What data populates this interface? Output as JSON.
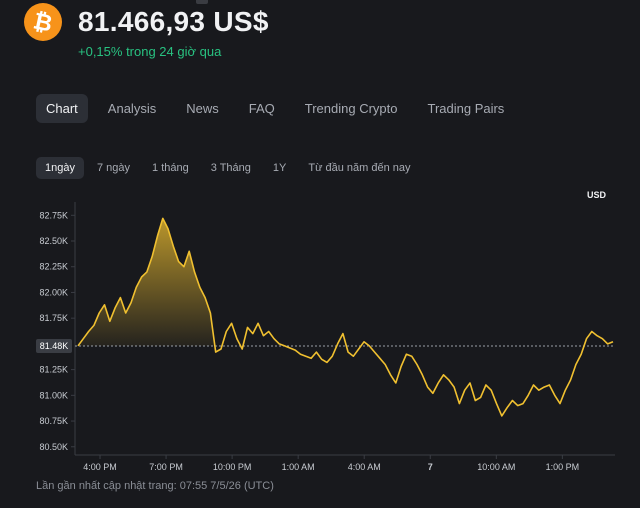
{
  "header": {
    "price": "81.466,93 US$",
    "change": "+0,15% trong 24 giờ qua"
  },
  "tabs": [
    "Chart",
    "Analysis",
    "News",
    "FAQ",
    "Trending Crypto",
    "Trading Pairs"
  ],
  "active_tab": "Chart",
  "ranges": [
    "1ngày",
    "7 ngày",
    "1 tháng",
    "3 Tháng",
    "1Y",
    "Từ đầu năm đến nay"
  ],
  "active_range": "1ngày",
  "currency": "USD",
  "footer": "Lần gần nhất cập nhật trang: 07:55 7/5/26 (UTC)",
  "colors": {
    "line": "#f0c030",
    "positive": "#28c281",
    "coin": "#f7931a"
  },
  "chart_data": {
    "type": "line",
    "series_unit": "USD",
    "y_ticks": [
      "82.75K",
      "82.50K",
      "82.25K",
      "82.00K",
      "81.75K",
      "81.48K",
      "81.25K",
      "81.00K",
      "80.75K",
      "80.50K"
    ],
    "x_ticks": [
      "4:00 PM",
      "7:00 PM",
      "10:00 PM",
      "1:00 AM",
      "4:00 AM",
      "7",
      "10:00 AM",
      "1:00 PM"
    ],
    "ylim": [
      80.42,
      82.85
    ],
    "reference_value": 81.48,
    "reference_label": "81.48K",
    "x_hours": [
      0,
      0.3,
      0.6,
      0.9,
      1.2,
      1.5,
      1.8,
      2.1,
      2.4,
      2.7,
      3.0,
      3.3,
      3.6,
      3.9,
      4.2,
      4.5,
      4.8,
      5.1,
      5.4,
      5.7,
      6.0,
      6.3,
      6.6,
      6.9,
      7.2,
      7.5,
      7.8,
      8.1,
      8.4,
      8.7,
      9.0,
      9.3,
      9.6,
      9.9,
      10.2,
      10.5,
      10.8,
      11.1,
      11.4,
      11.7,
      12.0,
      12.3,
      12.6,
      12.9,
      13.2,
      13.5,
      13.8,
      14.1,
      14.4,
      14.7,
      15.0,
      15.3,
      15.6,
      15.9,
      16.2,
      16.5,
      16.8,
      17.1,
      17.4,
      17.7,
      18.0,
      18.3,
      18.6,
      18.9,
      19.2,
      19.5,
      19.8,
      20.1,
      20.4,
      20.7,
      21.0,
      21.3,
      21.6,
      21.9,
      22.2,
      22.5,
      22.8,
      23.1,
      23.4,
      23.7,
      24.0,
      24.3,
      24.6,
      24.9,
      25.2,
      25.5,
      25.8,
      26.1,
      26.4,
      26.7,
      27.0,
      27.3,
      27.6,
      27.9,
      28.2,
      28.5,
      28.8,
      29.1,
      29.4,
      29.7,
      30.0,
      30.3
    ],
    "values": [
      81.48,
      81.55,
      81.62,
      81.68,
      81.8,
      81.88,
      81.72,
      81.85,
      81.95,
      81.8,
      81.9,
      82.05,
      82.15,
      82.2,
      82.35,
      82.55,
      82.72,
      82.62,
      82.45,
      82.3,
      82.25,
      82.4,
      82.2,
      82.05,
      81.95,
      81.8,
      81.42,
      81.45,
      81.62,
      81.7,
      81.55,
      81.45,
      81.66,
      81.6,
      81.7,
      81.58,
      81.62,
      81.55,
      81.5,
      81.48,
      81.46,
      81.44,
      81.4,
      81.38,
      81.36,
      81.42,
      81.35,
      81.32,
      81.38,
      81.5,
      81.6,
      81.42,
      81.38,
      81.45,
      81.52,
      81.48,
      81.42,
      81.36,
      81.3,
      81.2,
      81.12,
      81.28,
      81.4,
      81.38,
      81.3,
      81.2,
      81.08,
      81.02,
      81.12,
      81.2,
      81.15,
      81.08,
      80.92,
      81.05,
      81.12,
      80.95,
      80.98,
      81.1,
      81.05,
      80.92,
      80.8,
      80.88,
      80.95,
      80.9,
      80.92,
      81.0,
      81.1,
      81.05,
      81.08,
      81.1,
      81.0,
      80.92,
      81.05,
      81.15,
      81.3,
      81.4,
      81.55,
      81.62,
      81.58,
      81.55,
      81.5,
      81.52
    ]
  }
}
